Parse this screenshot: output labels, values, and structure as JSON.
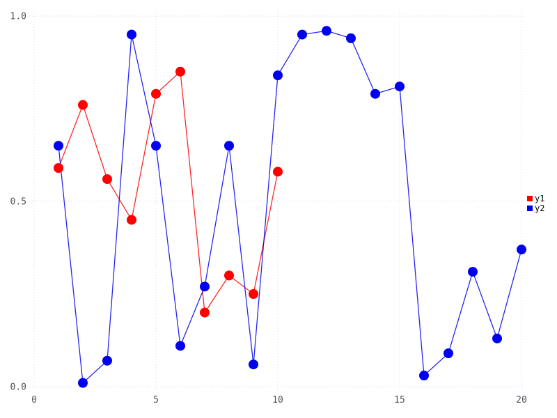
{
  "chart_data": {
    "type": "line",
    "title": "",
    "xlabel": "",
    "ylabel": "",
    "xlim": [
      0,
      20
    ],
    "ylim": [
      0,
      1
    ],
    "x_ticks": [
      {
        "value": 0,
        "label": "0"
      },
      {
        "value": 5,
        "label": "5"
      },
      {
        "value": 10,
        "label": "10"
      },
      {
        "value": 15,
        "label": "15"
      },
      {
        "value": 20,
        "label": "20"
      }
    ],
    "y_ticks": [
      {
        "value": 0,
        "label": "0.0"
      },
      {
        "value": 0.5,
        "label": "0.5"
      },
      {
        "value": 1,
        "label": "1.0"
      }
    ],
    "grid": true,
    "legend_position": "right-outside-middle",
    "series": [
      {
        "name": "y1",
        "color": "#ff0000",
        "x": [
          1,
          2,
          3,
          4,
          5,
          6,
          7,
          8,
          9,
          10
        ],
        "values": [
          0.59,
          0.76,
          0.56,
          0.45,
          0.79,
          0.85,
          0.2,
          0.3,
          0.25,
          0.58
        ]
      },
      {
        "name": "y2",
        "color": "#0000ee",
        "x": [
          1,
          2,
          3,
          4,
          5,
          6,
          7,
          8,
          9,
          10,
          11,
          12,
          13,
          14,
          15,
          16,
          17,
          18,
          19,
          20
        ],
        "values": [
          0.65,
          0.01,
          0.07,
          0.95,
          0.65,
          0.11,
          0.27,
          0.65,
          0.06,
          0.84,
          0.95,
          0.96,
          0.94,
          0.79,
          0.81,
          0.03,
          0.09,
          0.31,
          0.13,
          0.37
        ]
      }
    ]
  },
  "colors": {
    "background": "#ffffff",
    "grid": "#d9d9e3",
    "tick_label": "#51515c",
    "legend_text": "#000000"
  }
}
